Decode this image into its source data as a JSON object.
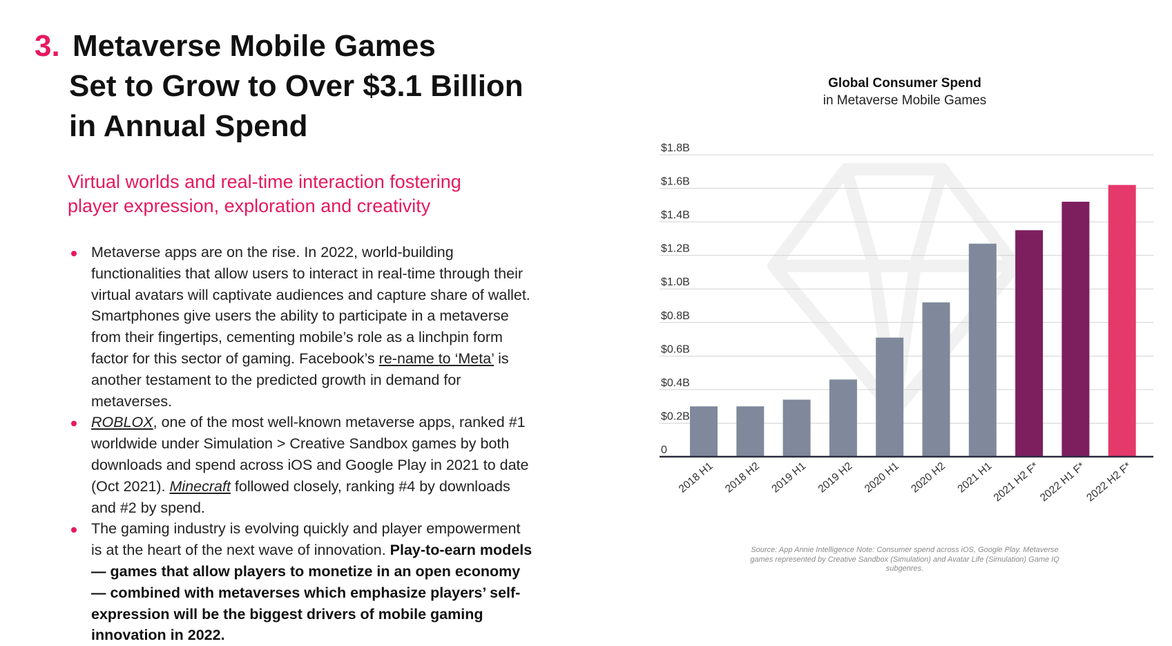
{
  "heading": {
    "number": "3.",
    "lines": [
      "Metaverse Mobile Games",
      "Set to Grow to Over $3.1 Billion",
      "in Annual Spend"
    ]
  },
  "subtitle": {
    "lines": [
      "Virtual worlds and real-time interaction fostering",
      "player expression, exploration and creativity"
    ]
  },
  "bullets": {
    "b1": {
      "text_1": "Metaverse apps are on the rise. In 2022, world-building functionalities that allow users to interact in real-time through their virtual avatars will captivate audiences and capture share of wallet. Smartphones give users the ability to participate in a metaverse from their fingertips, cementing mobile’s role as a linchpin form factor for this sector of gaming. Facebook’s ",
      "link": "re-name to ‘Meta’",
      "text_2": " is another testament to the predicted growth in demand for metaverses."
    },
    "b2": {
      "link_1": "ROBLOX",
      "text_1": ", one of the most well-known metaverse apps, ranked #1 worldwide under Simulation > Creative Sandbox games by both downloads and spend across iOS and Google Play in 2021 to date (Oct 2021). ",
      "link_2": "Minecraft",
      "text_2": " followed closely, ranking #4 by downloads and #2 by spend."
    },
    "b3": {
      "text_1": "The gaming industry is evolving quickly and player empowerment is at the heart of the next wave of innovation. ",
      "bold": "Play-to-earn models — games that allow players to monetize in an open economy — combined with metaverses which emphasize players’ self-expression will be the biggest drivers of mobile gaming innovation in 2022."
    }
  },
  "chart_data": {
    "type": "bar",
    "title": "Global Consumer Spend",
    "subtitle": "in Metaverse Mobile Games",
    "categories": [
      "2018 H1",
      "2018 H2",
      "2019 H1",
      "2019 H2",
      "2020 H1",
      "2020 H2",
      "2021 H1",
      "2021 H2 F*",
      "2022 H1 F*",
      "2022 H2 F*"
    ],
    "values": [
      0.3,
      0.3,
      0.34,
      0.46,
      0.71,
      0.92,
      1.27,
      1.35,
      1.52,
      1.62
    ],
    "colors": [
      "#7f899b",
      "#7f899b",
      "#7f899b",
      "#7f899b",
      "#7f899b",
      "#7f899b",
      "#7f899b",
      "#7d1f5e",
      "#7d1f5e",
      "#e5386b"
    ],
    "y_ticks": [
      0,
      0.2,
      0.4,
      0.6,
      0.8,
      1.0,
      1.2,
      1.4,
      1.6,
      1.8
    ],
    "y_tick_labels": [
      "0",
      "$0.2B",
      "$0.4B",
      "$0.6B",
      "$0.8B",
      "$1.0B",
      "$1.2B",
      "$1.4B",
      "$1.6B",
      "$1.8B"
    ],
    "ylim": [
      0,
      1.8
    ],
    "xlabel": "",
    "ylabel": "",
    "grid": true,
    "legend": "none"
  },
  "source": {
    "text": "Source: App Annie Intelligence Note: Consumer spend across iOS, Google Play. Metaverse games represented by Creative Sandbox (Simulation) and Avatar Life (Simulation) Game IQ subgenres."
  }
}
